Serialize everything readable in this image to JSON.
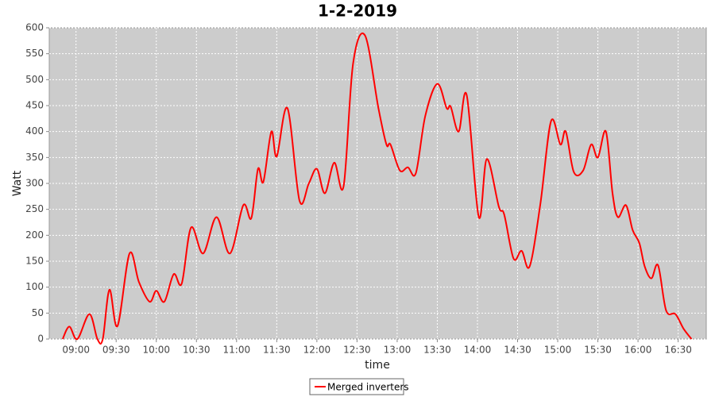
{
  "chart_data": {
    "type": "line",
    "title": "1-2-2019",
    "x_label": "time",
    "y_label": "Watt",
    "x": [
      "08:50",
      "08:55",
      "09:01",
      "09:10",
      "09:16",
      "09:20",
      "09:25",
      "09:31",
      "09:40",
      "09:47",
      "09:55",
      "10:00",
      "10:06",
      "10:13",
      "10:19",
      "10:26",
      "10:35",
      "10:45",
      "10:55",
      "11:05",
      "11:11",
      "11:16",
      "11:20",
      "11:26",
      "11:30",
      "11:38",
      "11:47",
      "11:54",
      "12:00",
      "12:06",
      "12:13",
      "12:20",
      "12:27",
      "12:36",
      "12:46",
      "12:52",
      "12:55",
      "13:02",
      "13:08",
      "13:14",
      "13:21",
      "13:30",
      "13:37",
      "13:40",
      "13:46",
      "13:52",
      "14:01",
      "14:07",
      "14:16",
      "14:20",
      "14:27",
      "14:33",
      "14:39",
      "14:47",
      "14:55",
      "15:02",
      "15:06",
      "15:12",
      "15:19",
      "15:25",
      "15:30",
      "15:36",
      "15:41",
      "15:45",
      "15:51",
      "15:56",
      "16:01",
      "16:05",
      "16:10",
      "16:15",
      "16:21",
      "16:28",
      "16:34",
      "16:40"
    ],
    "series": [
      {
        "name": "Merged inverters",
        "color": "#ff0000",
        "values": [
          0,
          24,
          0,
          48,
          0,
          0,
          95,
          25,
          165,
          110,
          72,
          93,
          72,
          125,
          107,
          215,
          165,
          235,
          165,
          258,
          233,
          328,
          303,
          400,
          352,
          445,
          267,
          300,
          328,
          281,
          340,
          295,
          530,
          585,
          445,
          375,
          375,
          325,
          331,
          320,
          430,
          492,
          445,
          448,
          400,
          470,
          235,
          347,
          255,
          240,
          155,
          170,
          140,
          260,
          420,
          375,
          400,
          322,
          325,
          375,
          350,
          400,
          280,
          235,
          258,
          210,
          185,
          140,
          117,
          142,
          55,
          48,
          20,
          0
        ]
      }
    ],
    "xlim": [
      "08:40",
      "16:51"
    ],
    "xticks": [
      "09:00",
      "09:30",
      "10:00",
      "10:30",
      "11:00",
      "11:30",
      "12:00",
      "12:30",
      "13:00",
      "13:30",
      "14:00",
      "14:30",
      "15:00",
      "15:30",
      "16:00",
      "16:30"
    ],
    "ylim": [
      0,
      600
    ],
    "yticks": [
      0,
      50,
      100,
      150,
      200,
      250,
      300,
      350,
      400,
      450,
      500,
      550,
      600
    ],
    "grid": true
  }
}
